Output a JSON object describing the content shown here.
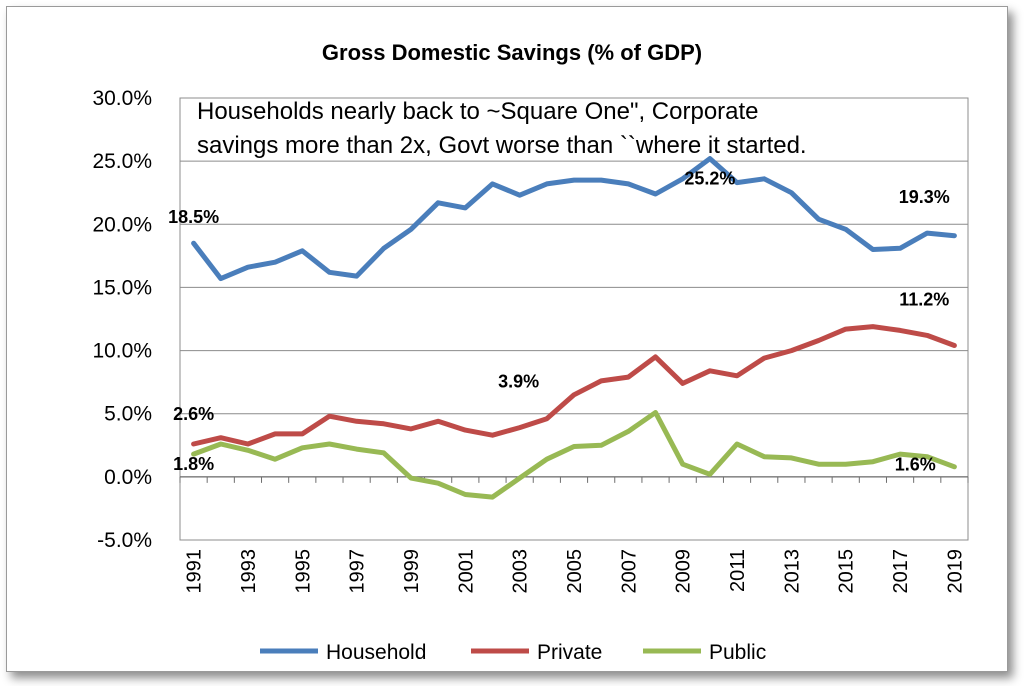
{
  "chart_data": {
    "type": "line",
    "title": "Gross Domestic Savings  (% of GDP)",
    "annotation_lines": [
      "Households nearly back to ~Square One\", Corporate",
      "savings more than 2x, Govt worse than ``where it started."
    ],
    "x": [
      1991,
      1992,
      1993,
      1994,
      1995,
      1996,
      1997,
      1998,
      1999,
      2000,
      2001,
      2002,
      2003,
      2004,
      2005,
      2006,
      2007,
      2008,
      2009,
      2010,
      2011,
      2012,
      2013,
      2014,
      2015,
      2016,
      2017,
      2018,
      2019
    ],
    "x_tick_labels": [
      "1991",
      "1993",
      "1995",
      "1997",
      "1999",
      "2001",
      "2003",
      "2005",
      "2007",
      "2009",
      "2011",
      "2013",
      "2015",
      "2017",
      "2019"
    ],
    "y_tick_labels": [
      "30.0%",
      "25.0%",
      "20.0%",
      "15.0%",
      "10.0%",
      "5.0%",
      "0.0%",
      "-5.0%"
    ],
    "ylim": [
      -5,
      30
    ],
    "grid": "horizontal",
    "legend_position": "bottom",
    "series": [
      {
        "name": "Household",
        "color": "#4A7EBB",
        "values": [
          18.5,
          15.7,
          16.6,
          17.0,
          17.9,
          16.2,
          15.9,
          18.1,
          19.6,
          21.7,
          21.3,
          23.2,
          22.3,
          23.2,
          23.5,
          23.5,
          23.2,
          22.4,
          23.6,
          25.2,
          23.3,
          23.6,
          22.5,
          20.4,
          19.6,
          18.0,
          18.1,
          19.3,
          19.1
        ]
      },
      {
        "name": "Private",
        "color": "#BE4B48",
        "values": [
          2.6,
          3.1,
          2.6,
          3.4,
          3.4,
          4.8,
          4.4,
          4.2,
          3.8,
          4.4,
          3.7,
          3.3,
          3.9,
          4.6,
          6.5,
          7.6,
          7.9,
          9.5,
          7.4,
          8.4,
          8.0,
          9.4,
          10.0,
          10.8,
          11.7,
          11.9,
          11.6,
          11.2,
          10.4
        ]
      },
      {
        "name": "Public",
        "color": "#98B954",
        "values": [
          1.8,
          2.6,
          2.1,
          1.4,
          2.3,
          2.6,
          2.2,
          1.9,
          -0.1,
          -0.5,
          -1.4,
          -1.6,
          -0.1,
          1.4,
          2.4,
          2.5,
          3.6,
          5.1,
          1.0,
          0.2,
          2.6,
          1.6,
          1.5,
          1.0,
          1.0,
          1.2,
          1.8,
          1.6,
          0.8
        ]
      }
    ],
    "data_labels": [
      {
        "series": "Household",
        "x": 1991,
        "text": "18.5%"
      },
      {
        "series": "Household",
        "x": 2010,
        "text": "25.2%"
      },
      {
        "series": "Household",
        "x": 2018,
        "text": "19.3%"
      },
      {
        "series": "Private",
        "x": 1991,
        "text": "2.6%"
      },
      {
        "series": "Private",
        "x": 2003,
        "text": "3.9%"
      },
      {
        "series": "Private",
        "x": 2018,
        "text": "11.2%"
      },
      {
        "series": "Public",
        "x": 1991,
        "text": "1.8%"
      },
      {
        "series": "Public",
        "x": 2018,
        "text": "1.6%"
      }
    ]
  }
}
